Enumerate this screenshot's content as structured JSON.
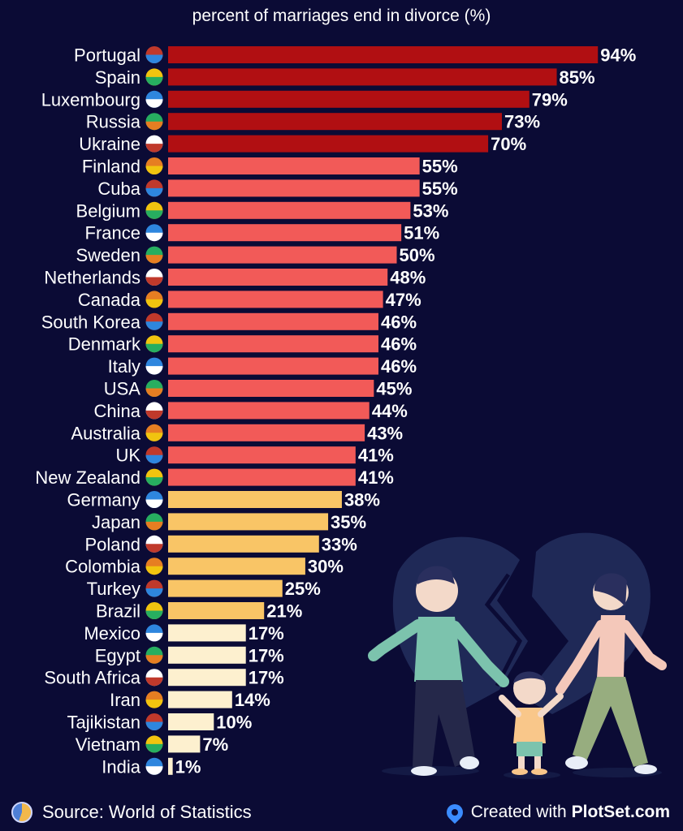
{
  "chart_data": {
    "type": "bar",
    "orientation": "horizontal",
    "title": "percent of marriages end in divorce (%)",
    "categories": [
      "Portugal",
      "Spain",
      "Luxembourg",
      "Russia",
      "Ukraine",
      "Finland",
      "Cuba",
      "Belgium",
      "France",
      "Sweden",
      "Netherlands",
      "Canada",
      "South Korea",
      "Denmark",
      "Italy",
      "USA",
      "China",
      "Australia",
      "UK",
      "New Zealand",
      "Germany",
      "Japan",
      "Poland",
      "Colombia",
      "Turkey",
      "Brazil",
      "Mexico",
      "Egypt",
      "South Africa",
      "Iran",
      "Tajikistan",
      "Vietnam",
      "India"
    ],
    "values": [
      94,
      85,
      79,
      73,
      70,
      55,
      55,
      53,
      51,
      50,
      48,
      47,
      46,
      46,
      46,
      45,
      44,
      43,
      41,
      41,
      38,
      35,
      33,
      30,
      25,
      21,
      17,
      17,
      17,
      14,
      10,
      7,
      1
    ],
    "value_labels": [
      "94%",
      "85%",
      "79%",
      "73%",
      "70%",
      "55%",
      "55%",
      "53%",
      "51%",
      "50%",
      "48%",
      "47%",
      "46%",
      "46%",
      "46%",
      "45%",
      "44%",
      "43%",
      "41%",
      "41%",
      "38%",
      "35%",
      "33%",
      "30%",
      "25%",
      "21%",
      "17%",
      "17%",
      "17%",
      "14%",
      "10%",
      "7%",
      "1%"
    ],
    "xlim": [
      0,
      100
    ],
    "grid": false,
    "legend": "none",
    "color_tiers": [
      {
        "min": 70,
        "color": "#b10f12"
      },
      {
        "min": 40,
        "color": "#f25a58"
      },
      {
        "min": 20,
        "color": "#f9c566"
      },
      {
        "min": 0,
        "color": "#fdf0cf"
      }
    ]
  },
  "footer": {
    "source": "Source: World of Statistics",
    "created_prefix": "Created with",
    "brand": "PlotSet.com"
  },
  "icons": {
    "source": "pie-chart-icon",
    "credit": "location-pin-icon",
    "flags": "country-flag-icon",
    "illustration": "divorce-family-illustration"
  },
  "colors": {
    "background": "#0b0b35",
    "text": "#ffffff"
  }
}
